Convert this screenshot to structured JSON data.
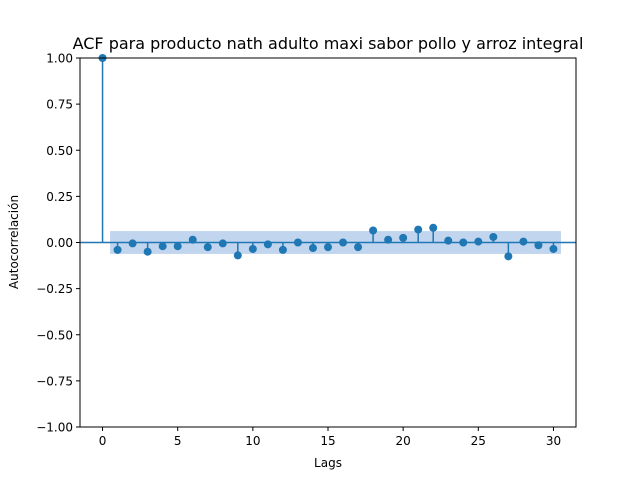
{
  "chart_data": {
    "type": "stem",
    "title": "ACF para producto nath adulto maxi sabor pollo y arroz integral",
    "xlabel": "Lags",
    "ylabel": "Autocorrelación",
    "xlim": [
      -1.5,
      31.5
    ],
    "ylim": [
      -1.0,
      1.0
    ],
    "xticks": [
      0,
      5,
      10,
      15,
      20,
      25,
      30
    ],
    "xtick_labels": [
      "0",
      "5",
      "10",
      "15",
      "20",
      "25",
      "30"
    ],
    "yticks": [
      -1.0,
      -0.75,
      -0.5,
      -0.25,
      0.0,
      0.25,
      0.5,
      0.75,
      1.0
    ],
    "ytick_labels": [
      "−1.00",
      "−0.75",
      "−0.50",
      "−0.25",
      "0.00",
      "0.25",
      "0.50",
      "0.75",
      "1.00"
    ],
    "lags": [
      0,
      1,
      2,
      3,
      4,
      5,
      6,
      7,
      8,
      9,
      10,
      11,
      12,
      13,
      14,
      15,
      16,
      17,
      18,
      19,
      20,
      21,
      22,
      23,
      24,
      25,
      26,
      27,
      28,
      29,
      30
    ],
    "values": [
      1.0,
      -0.04,
      -0.005,
      -0.05,
      -0.02,
      -0.02,
      0.015,
      -0.025,
      -0.005,
      -0.07,
      -0.035,
      -0.01,
      -0.04,
      0.0,
      -0.03,
      -0.025,
      0.0,
      -0.025,
      0.065,
      0.015,
      0.025,
      0.07,
      0.08,
      0.01,
      0.0,
      0.005,
      0.03,
      -0.075,
      0.005,
      -0.015,
      -0.035
    ],
    "confidence_band": {
      "x": [
        0.5,
        30.5
      ],
      "upper": 0.062,
      "lower": -0.062
    },
    "grid": false,
    "colors": {
      "stem": "#1f77b4",
      "band": "#aec7e8"
    }
  }
}
